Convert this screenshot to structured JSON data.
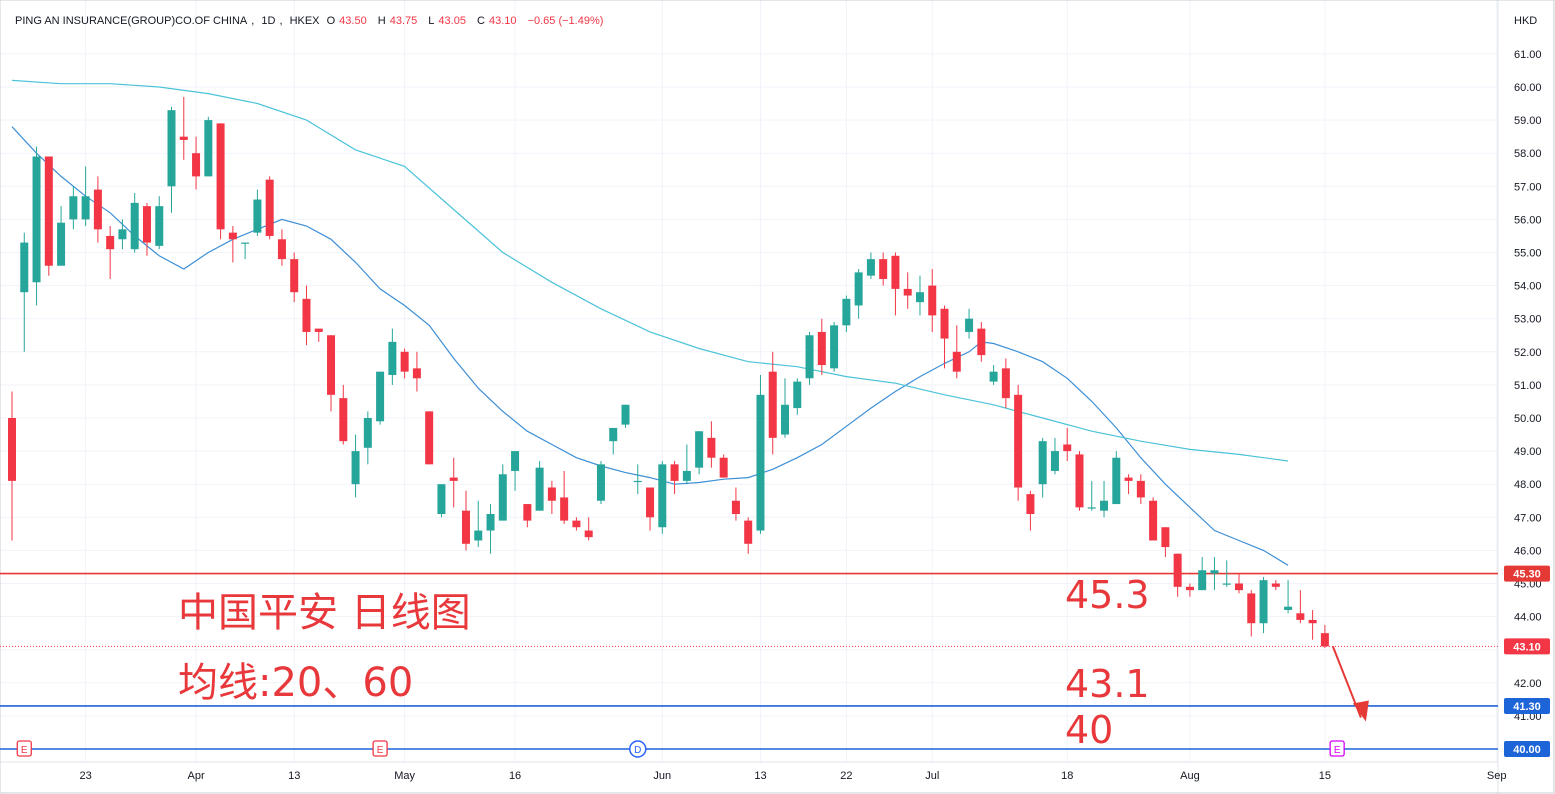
{
  "header": {
    "symbol": "PING AN INSURANCE(GROUP)CO.OF CHINA",
    "interval": "1D",
    "exchange": "HKEX",
    "open_label": "O",
    "open": "43.50",
    "high_label": "H",
    "high": "43.75",
    "low_label": "L",
    "low": "43.05",
    "close_label": "C",
    "close": "43.10",
    "change": "−0.65 (−1.49%)",
    "currency": "HKD"
  },
  "annotations": {
    "title_cn": "中国平安 日线图",
    "ma_cn": "均线:20、60",
    "level_a": "45.3",
    "level_b": "43.1",
    "level_c": "40"
  },
  "colors": {
    "up": "#26a69a",
    "down": "#f23645",
    "ma20": "#3d8fd6",
    "ma60": "#4cc3d9",
    "resistance": "#e53935",
    "support": "#1e64d9"
  },
  "chart_data": {
    "type": "candlestick",
    "symbol": "PING AN INSURANCE(GROUP)CO.OF CHINA",
    "interval": "1D",
    "currency": "HKD",
    "ylim": [
      40,
      61
    ],
    "y_ticks": [
      41,
      42,
      43,
      44,
      45,
      46,
      47,
      48,
      49,
      50,
      51,
      52,
      53,
      54,
      55,
      56,
      57,
      58,
      59,
      60,
      61
    ],
    "x_ticks": [
      {
        "label": "23",
        "index": 6
      },
      {
        "label": "Apr",
        "index": 15
      },
      {
        "label": "13",
        "index": 23
      },
      {
        "label": "May",
        "index": 32
      },
      {
        "label": "16",
        "index": 41
      },
      {
        "label": "Jun",
        "index": 53
      },
      {
        "label": "13",
        "index": 61
      },
      {
        "label": "22",
        "index": 68
      },
      {
        "label": "Jul",
        "index": 75
      },
      {
        "label": "18",
        "index": 86
      },
      {
        "label": "Aug",
        "index": 96
      },
      {
        "label": "15",
        "index": 107
      },
      {
        "label": "Sep",
        "index": 121
      }
    ],
    "candles": [
      [
        50.0,
        48.1,
        50.8,
        46.3
      ],
      [
        53.8,
        55.3,
        55.6,
        52.0
      ],
      [
        54.1,
        57.9,
        58.2,
        53.4
      ],
      [
        57.9,
        54.6,
        57.9,
        54.3
      ],
      [
        54.6,
        55.9,
        56.4,
        54.6
      ],
      [
        56.0,
        56.7,
        57.0,
        55.7
      ],
      [
        56.0,
        56.7,
        57.6,
        55.8
      ],
      [
        56.9,
        55.7,
        57.3,
        55.3
      ],
      [
        55.5,
        55.1,
        55.8,
        54.2
      ],
      [
        55.4,
        55.7,
        56.0,
        55.1
      ],
      [
        55.1,
        56.5,
        56.8,
        55.0
      ],
      [
        56.4,
        55.3,
        56.5,
        54.9
      ],
      [
        55.2,
        56.4,
        56.7,
        55.1
      ],
      [
        57.0,
        59.3,
        59.4,
        56.2
      ],
      [
        58.5,
        58.4,
        59.7,
        57.8
      ],
      [
        58.0,
        57.3,
        58.5,
        56.9
      ],
      [
        57.3,
        59.0,
        59.1,
        57.3
      ],
      [
        58.9,
        55.7,
        58.9,
        55.4
      ],
      [
        55.6,
        55.4,
        55.8,
        54.7
      ],
      [
        55.3,
        55.3,
        55.3,
        54.8
      ],
      [
        55.6,
        56.6,
        56.9,
        55.5
      ],
      [
        57.2,
        55.5,
        57.3,
        55.4
      ],
      [
        55.4,
        54.8,
        55.7,
        54.6
      ],
      [
        54.8,
        53.8,
        55.0,
        53.5
      ],
      [
        53.6,
        52.6,
        54.0,
        52.2
      ],
      [
        52.7,
        52.6,
        52.7,
        52.3
      ],
      [
        52.5,
        50.7,
        52.5,
        50.2
      ],
      [
        50.6,
        49.3,
        51.0,
        49.2
      ],
      [
        48.0,
        49.0,
        49.5,
        47.6
      ],
      [
        49.1,
        50.0,
        50.2,
        48.6
      ],
      [
        49.9,
        51.4,
        51.4,
        49.8
      ],
      [
        51.3,
        52.3,
        52.7,
        51.0
      ],
      [
        52.0,
        51.4,
        52.1,
        51.2
      ],
      [
        51.5,
        51.2,
        52.0,
        50.8
      ],
      [
        50.2,
        48.6,
        50.2,
        48.6
      ],
      [
        47.1,
        48.0,
        48.0,
        47.0
      ],
      [
        48.2,
        48.1,
        48.8,
        47.3
      ],
      [
        47.2,
        46.2,
        47.8,
        46.0
      ],
      [
        46.3,
        46.6,
        47.5,
        46.1
      ],
      [
        46.6,
        47.1,
        47.4,
        45.9
      ],
      [
        46.9,
        48.3,
        48.6,
        46.9
      ],
      [
        48.4,
        49.0,
        49.0,
        47.8
      ],
      [
        47.4,
        46.9,
        47.4,
        46.7
      ],
      [
        47.2,
        48.5,
        48.7,
        47.2
      ],
      [
        47.9,
        47.5,
        48.1,
        47.1
      ],
      [
        47.6,
        46.9,
        48.4,
        46.8
      ],
      [
        46.9,
        46.7,
        47.0,
        46.6
      ],
      [
        46.6,
        46.4,
        47.0,
        46.3
      ],
      [
        47.5,
        48.6,
        48.7,
        47.4
      ],
      [
        49.3,
        49.7,
        49.7,
        48.9
      ],
      [
        49.8,
        50.4,
        50.4,
        49.7
      ],
      [
        48.1,
        48.1,
        48.6,
        47.7
      ],
      [
        47.9,
        47.0,
        47.9,
        46.6
      ],
      [
        46.7,
        48.6,
        48.7,
        46.5
      ],
      [
        48.6,
        48.1,
        48.7,
        47.7
      ],
      [
        48.1,
        48.4,
        49.2,
        48.0
      ],
      [
        48.5,
        49.6,
        49.6,
        48.3
      ],
      [
        49.4,
        48.8,
        49.9,
        48.5
      ],
      [
        48.8,
        48.2,
        48.9,
        48.2
      ],
      [
        47.5,
        47.1,
        47.9,
        46.9
      ],
      [
        46.9,
        46.2,
        47.0,
        45.9
      ],
      [
        46.6,
        50.7,
        51.3,
        46.5
      ],
      [
        51.4,
        49.4,
        52.0,
        48.9
      ],
      [
        49.5,
        50.4,
        51.2,
        49.4
      ],
      [
        50.3,
        51.1,
        51.2,
        50.1
      ],
      [
        51.2,
        52.5,
        52.6,
        51.0
      ],
      [
        52.6,
        51.6,
        53.0,
        51.3
      ],
      [
        51.5,
        52.8,
        52.9,
        51.4
      ],
      [
        52.8,
        53.6,
        53.7,
        52.6
      ],
      [
        53.4,
        54.4,
        54.5,
        53.0
      ],
      [
        54.3,
        54.8,
        55.0,
        54.2
      ],
      [
        54.8,
        54.2,
        55.0,
        54.0
      ],
      [
        54.9,
        53.9,
        55.0,
        53.1
      ],
      [
        53.9,
        53.7,
        54.4,
        53.3
      ],
      [
        53.5,
        53.8,
        54.3,
        53.1
      ],
      [
        54.0,
        53.1,
        54.5,
        52.6
      ],
      [
        53.3,
        52.4,
        53.4,
        51.5
      ],
      [
        52.0,
        51.4,
        52.8,
        51.2
      ],
      [
        52.6,
        53.0,
        53.3,
        52.4
      ],
      [
        52.7,
        51.9,
        52.9,
        51.7
      ],
      [
        51.1,
        51.4,
        51.6,
        51.0
      ],
      [
        51.5,
        50.6,
        51.8,
        50.3
      ],
      [
        50.7,
        47.9,
        51.0,
        47.5
      ],
      [
        47.7,
        47.1,
        47.8,
        46.6
      ],
      [
        48.0,
        49.3,
        49.4,
        47.6
      ],
      [
        48.4,
        49.0,
        49.4,
        48.3
      ],
      [
        49.2,
        49.0,
        49.7,
        48.7
      ],
      [
        48.9,
        47.3,
        49.0,
        47.2
      ],
      [
        47.3,
        47.3,
        48.1,
        47.2
      ],
      [
        47.2,
        47.5,
        48.1,
        47.0
      ],
      [
        47.4,
        48.8,
        49.0,
        47.4
      ],
      [
        48.2,
        48.1,
        48.3,
        47.7
      ],
      [
        48.1,
        47.6,
        48.3,
        47.4
      ],
      [
        47.5,
        46.3,
        47.6,
        46.3
      ],
      [
        46.7,
        46.1,
        46.7,
        45.8
      ],
      [
        45.9,
        44.9,
        45.9,
        44.6
      ],
      [
        44.9,
        44.8,
        45.0,
        44.6
      ],
      [
        44.8,
        45.4,
        45.8,
        44.8
      ],
      [
        45.3,
        45.4,
        45.8,
        44.8
      ],
      [
        45.0,
        45.0,
        45.7,
        44.9
      ],
      [
        45.0,
        44.8,
        45.3,
        44.7
      ],
      [
        44.7,
        43.8,
        44.8,
        43.4
      ],
      [
        43.8,
        45.1,
        45.2,
        43.5
      ],
      [
        45.0,
        44.9,
        45.1,
        44.8
      ],
      [
        44.2,
        44.3,
        45.1,
        44.1
      ],
      [
        44.1,
        43.9,
        44.8,
        43.8
      ],
      [
        43.9,
        43.8,
        44.2,
        43.3
      ],
      [
        43.5,
        43.1,
        43.75,
        43.05
      ]
    ],
    "series": [
      {
        "name": "20",
        "values": [
          [
            0,
            58.8
          ],
          [
            2,
            58.0
          ],
          [
            4,
            57.3
          ],
          [
            6,
            56.7
          ],
          [
            8,
            56.2
          ],
          [
            10,
            55.5
          ],
          [
            12,
            54.9
          ],
          [
            14,
            54.5
          ],
          [
            16,
            55.0
          ],
          [
            18,
            55.4
          ],
          [
            20,
            55.7
          ],
          [
            22,
            56.0
          ],
          [
            24,
            55.8
          ],
          [
            26,
            55.4
          ],
          [
            28,
            54.7
          ],
          [
            30,
            53.9
          ],
          [
            32,
            53.4
          ],
          [
            34,
            52.8
          ],
          [
            36,
            51.8
          ],
          [
            38,
            50.9
          ],
          [
            40,
            50.2
          ],
          [
            42,
            49.6
          ],
          [
            44,
            49.2
          ],
          [
            46,
            48.8
          ],
          [
            48,
            48.55
          ],
          [
            50,
            48.35
          ],
          [
            52,
            48.2
          ],
          [
            54,
            48.0
          ],
          [
            56,
            48.05
          ],
          [
            58,
            48.15
          ],
          [
            60,
            48.2
          ],
          [
            62,
            48.45
          ],
          [
            64,
            48.8
          ],
          [
            66,
            49.2
          ],
          [
            68,
            49.75
          ],
          [
            70,
            50.3
          ],
          [
            72,
            50.8
          ],
          [
            74,
            51.25
          ],
          [
            76,
            51.65
          ],
          [
            78,
            52.0
          ],
          [
            79,
            52.3
          ],
          [
            80,
            52.25
          ],
          [
            82,
            52.0
          ],
          [
            84,
            51.7
          ],
          [
            86,
            51.2
          ],
          [
            88,
            50.5
          ],
          [
            90,
            49.7
          ],
          [
            92,
            48.8
          ],
          [
            94,
            48.0
          ],
          [
            96,
            47.3
          ],
          [
            98,
            46.6
          ],
          [
            100,
            46.3
          ],
          [
            102,
            46.0
          ],
          [
            104,
            45.55
          ]
        ]
      },
      {
        "name": "60",
        "values": [
          [
            0,
            60.2
          ],
          [
            4,
            60.1
          ],
          [
            8,
            60.1
          ],
          [
            12,
            60.0
          ],
          [
            16,
            59.8
          ],
          [
            20,
            59.5
          ],
          [
            24,
            59.0
          ],
          [
            28,
            58.1
          ],
          [
            32,
            57.6
          ],
          [
            36,
            56.3
          ],
          [
            40,
            55.0
          ],
          [
            44,
            54.1
          ],
          [
            48,
            53.3
          ],
          [
            52,
            52.6
          ],
          [
            56,
            52.1
          ],
          [
            60,
            51.7
          ],
          [
            64,
            51.55
          ],
          [
            68,
            51.25
          ],
          [
            72,
            51.05
          ],
          [
            76,
            50.7
          ],
          [
            80,
            50.4
          ],
          [
            84,
            50.0
          ],
          [
            88,
            49.6
          ],
          [
            92,
            49.3
          ],
          [
            96,
            49.05
          ],
          [
            100,
            48.9
          ],
          [
            104,
            48.7
          ]
        ]
      }
    ],
    "horizontal_levels": [
      {
        "value": 45.3,
        "label": "45.30",
        "color": "#e53935"
      },
      {
        "value": 41.3,
        "label": "41.30",
        "color": "#1e64d9"
      },
      {
        "value": 40.0,
        "label": "40.00",
        "color": "#1e64d9"
      }
    ],
    "last_price": {
      "value": 43.1,
      "label": "43.10"
    },
    "events": [
      {
        "label": "E",
        "index": 1
      },
      {
        "label": "E",
        "index": 30
      },
      {
        "label": "D",
        "index": 51
      },
      {
        "label": "E",
        "index": 108
      }
    ]
  }
}
